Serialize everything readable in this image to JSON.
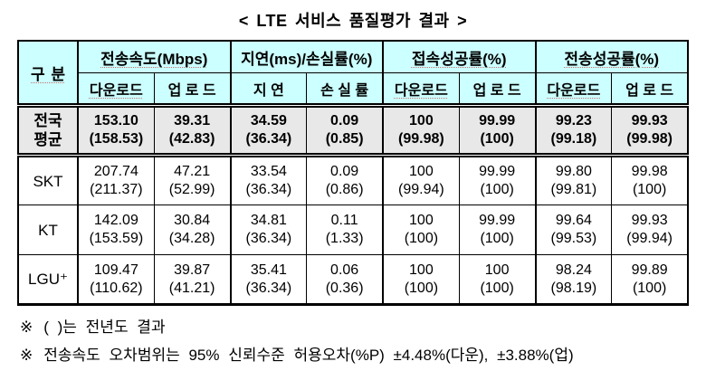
{
  "title": "< LTE 서비스 품질평가 결과 >",
  "table": {
    "corner_label": "구 분",
    "groups": [
      {
        "label": "전송속도(Mbps)"
      },
      {
        "label": "지연(ms)/손실률(%)"
      },
      {
        "label": "접속성공률(%)"
      },
      {
        "label": "전송성공률(%)"
      }
    ],
    "sub_headers": [
      "다운로드",
      "업 로 드",
      "지 연",
      "손 실 률",
      "다운로드",
      "업 로 드",
      "다운로드",
      "업 로 드"
    ],
    "rows": [
      {
        "label": "전국\n평균",
        "cells": [
          {
            "v": "153.10",
            "p": "(158.53)"
          },
          {
            "v": "39.31",
            "p": "(42.83)"
          },
          {
            "v": "34.59",
            "p": "(36.34)"
          },
          {
            "v": "0.09",
            "p": "(0.85)"
          },
          {
            "v": "100",
            "p": "(99.98)"
          },
          {
            "v": "99.99",
            "p": "(100)"
          },
          {
            "v": "99.23",
            "p": "(99.18)"
          },
          {
            "v": "99.93",
            "p": "(99.98)"
          }
        ]
      },
      {
        "label": "SKT",
        "cells": [
          {
            "v": "207.74",
            "p": "(211.37)"
          },
          {
            "v": "47.21",
            "p": "(52.99)"
          },
          {
            "v": "33.54",
            "p": "(36.34)"
          },
          {
            "v": "0.09",
            "p": "(0.86)"
          },
          {
            "v": "100",
            "p": "(99.94)"
          },
          {
            "v": "99.99",
            "p": "(100)"
          },
          {
            "v": "99.80",
            "p": "(99.81)"
          },
          {
            "v": "99.98",
            "p": "(100)"
          }
        ]
      },
      {
        "label": "KT",
        "cells": [
          {
            "v": "142.09",
            "p": "(153.59)"
          },
          {
            "v": "30.84",
            "p": "(34.28)"
          },
          {
            "v": "34.81",
            "p": "(36.34)"
          },
          {
            "v": "0.11",
            "p": "(1.33)"
          },
          {
            "v": "100",
            "p": "(100)"
          },
          {
            "v": "99.99",
            "p": "(100)"
          },
          {
            "v": "99.64",
            "p": "(99.53)"
          },
          {
            "v": "99.93",
            "p": "(99.94)"
          }
        ]
      },
      {
        "label": "LGU⁺",
        "cells": [
          {
            "v": "109.47",
            "p": "(110.62)"
          },
          {
            "v": "39.87",
            "p": "(41.21)"
          },
          {
            "v": "35.41",
            "p": "(36.34)"
          },
          {
            "v": "0.06",
            "p": "(0.36)"
          },
          {
            "v": "100",
            "p": "(100)"
          },
          {
            "v": "100",
            "p": "(100)"
          },
          {
            "v": "98.24",
            "p": "(98.19)"
          },
          {
            "v": "99.89",
            "p": "(100)"
          }
        ]
      }
    ]
  },
  "footnotes": [
    {
      "marker": "※",
      "text": "( )는 전년도 결과"
    },
    {
      "marker": "※",
      "text": "전송속도 오차범위는 95% 신뢰수준 허용오차(%P) ±4.48%(다운), ±3.88%(업)"
    }
  ],
  "colors": {
    "header_bg": "#ccffff",
    "national_row_bg": "#e8e8e8",
    "border": "#000000",
    "spellcheck_underline": "#c87070"
  }
}
